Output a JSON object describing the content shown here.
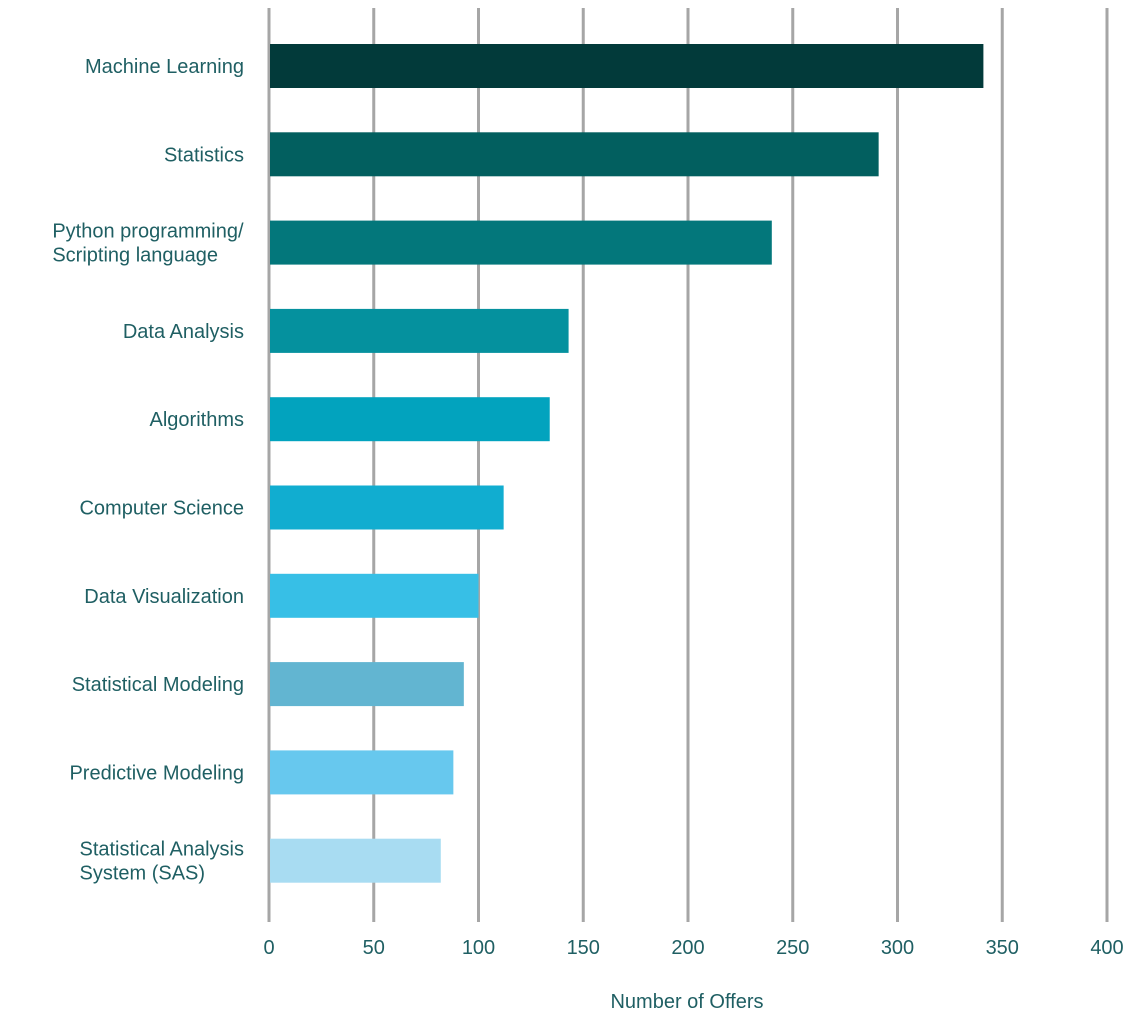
{
  "chart_data": {
    "type": "bar",
    "orientation": "horizontal",
    "categories": [
      [
        "Machine Learning"
      ],
      [
        "Statistics"
      ],
      [
        "Python programming/",
        "Scripting language"
      ],
      [
        "Data Analysis"
      ],
      [
        "Algorithms"
      ],
      [
        "Computer Science"
      ],
      [
        "Data Visualization"
      ],
      [
        "Statistical Modeling"
      ],
      [
        "Predictive Modeling"
      ],
      [
        "Statistical Analysis",
        "System (SAS)"
      ]
    ],
    "values": [
      341,
      291,
      240,
      143,
      134,
      112,
      100,
      93,
      88,
      82
    ],
    "colors": [
      "#023a3a",
      "#025f5f",
      "#03777b",
      "#05919e",
      "#02a3be",
      "#11add0",
      "#37bfe6",
      "#62b5d1",
      "#67c8ee",
      "#a8dcf2"
    ],
    "xlabel": "Number of Offers",
    "xlim": [
      0,
      400
    ],
    "xticks": [
      0,
      50,
      100,
      150,
      200,
      250,
      300,
      350,
      400
    ],
    "grid": "vertical"
  }
}
